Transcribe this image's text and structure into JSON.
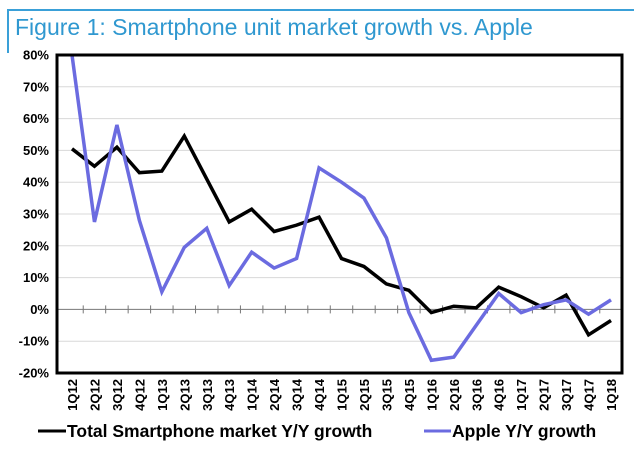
{
  "title": "Figure 1: Smartphone unit market growth vs. Apple",
  "chart_data": {
    "type": "line",
    "title": "Figure 1: Smartphone unit market growth vs. Apple",
    "xlabel": "",
    "ylabel": "",
    "ylim": [
      -20,
      80
    ],
    "yticks": [
      "80%",
      "70%",
      "60%",
      "50%",
      "40%",
      "30%",
      "20%",
      "10%",
      "0%",
      "-10%",
      "-20%"
    ],
    "grid": true,
    "legend": "bottom",
    "categories": [
      "1Q12",
      "2Q12",
      "3Q12",
      "4Q12",
      "1Q13",
      "2Q13",
      "3Q13",
      "4Q13",
      "1Q14",
      "2Q14",
      "3Q14",
      "4Q14",
      "1Q15",
      "2Q15",
      "3Q15",
      "4Q15",
      "1Q16",
      "2Q16",
      "3Q16",
      "4Q16",
      "1Q17",
      "2Q17",
      "3Q17",
      "4Q17",
      "1Q18"
    ],
    "series": [
      {
        "name": "Total Smartphone market Y/Y growth",
        "color": "#000000",
        "values": [
          50.5,
          45,
          51,
          43,
          43.5,
          54.5,
          41,
          27.5,
          31.5,
          24.5,
          26.5,
          29,
          16,
          13.5,
          8,
          6,
          -1,
          1,
          0.5,
          7,
          4,
          0.5,
          4.5,
          -8,
          -3.5
        ]
      },
      {
        "name": "Apple Y/Y growth",
        "color": "#6b6be0",
        "values": [
          80,
          27.5,
          58,
          28,
          5.5,
          19.5,
          25.5,
          7.5,
          18,
          13,
          16,
          44.5,
          40,
          35,
          22.5,
          -1,
          -16,
          -15,
          -5,
          5,
          -1,
          1.5,
          3,
          -1.5,
          3
        ]
      }
    ]
  }
}
